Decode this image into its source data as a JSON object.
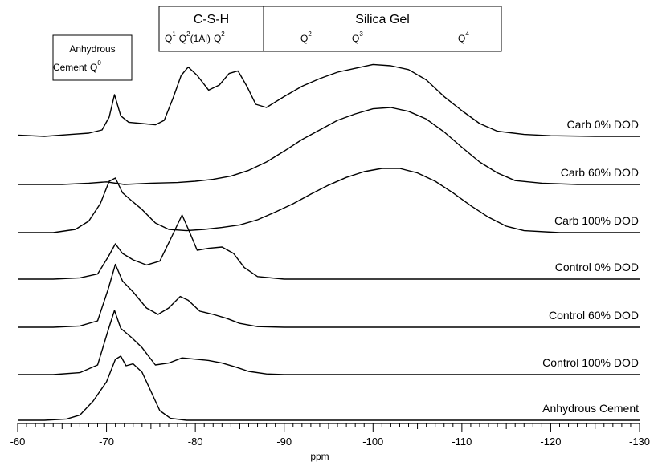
{
  "chart_data": {
    "type": "line",
    "xlabel": "ppm",
    "xlim": [
      -60,
      -130
    ],
    "x_ticks": [
      -60,
      -70,
      -80,
      -90,
      -100,
      -110,
      -120,
      -130
    ],
    "series": [
      {
        "name": "Carb 0% DOD",
        "points": [
          [
            -60,
            0.02
          ],
          [
            -63,
            0.0
          ],
          [
            -66,
            0.03
          ],
          [
            -68,
            0.05
          ],
          [
            -69.5,
            0.1
          ],
          [
            -70.3,
            0.3
          ],
          [
            -70.9,
            0.65
          ],
          [
            -71.6,
            0.32
          ],
          [
            -72.5,
            0.22
          ],
          [
            -74,
            0.2
          ],
          [
            -75.5,
            0.18
          ],
          [
            -76.5,
            0.25
          ],
          [
            -77.5,
            0.6
          ],
          [
            -78.4,
            0.95
          ],
          [
            -79.2,
            1.08
          ],
          [
            -80.2,
            0.95
          ],
          [
            -81.5,
            0.72
          ],
          [
            -82.7,
            0.8
          ],
          [
            -83.8,
            0.98
          ],
          [
            -84.8,
            1.02
          ],
          [
            -85.8,
            0.78
          ],
          [
            -86.8,
            0.5
          ],
          [
            -88,
            0.45
          ],
          [
            -90,
            0.62
          ],
          [
            -92,
            0.78
          ],
          [
            -94,
            0.9
          ],
          [
            -96,
            1.0
          ],
          [
            -98,
            1.06
          ],
          [
            -100,
            1.12
          ],
          [
            -102,
            1.1
          ],
          [
            -104,
            1.04
          ],
          [
            -106,
            0.88
          ],
          [
            -108,
            0.62
          ],
          [
            -110,
            0.4
          ],
          [
            -112,
            0.2
          ],
          [
            -114,
            0.08
          ],
          [
            -117,
            0.03
          ],
          [
            -120,
            0.01
          ],
          [
            -125,
            0.0
          ],
          [
            -130,
            0.0
          ]
        ]
      },
      {
        "name": "Carb 60% DOD",
        "points": [
          [
            -60,
            0.0
          ],
          [
            -65,
            0.0
          ],
          [
            -68,
            0.02
          ],
          [
            -70,
            0.04
          ],
          [
            -72,
            0.0
          ],
          [
            -75,
            0.02
          ],
          [
            -78,
            0.03
          ],
          [
            -80,
            0.05
          ],
          [
            -82,
            0.08
          ],
          [
            -84,
            0.13
          ],
          [
            -86,
            0.22
          ],
          [
            -88,
            0.35
          ],
          [
            -90,
            0.52
          ],
          [
            -92,
            0.7
          ],
          [
            -94,
            0.85
          ],
          [
            -96,
            1.0
          ],
          [
            -98,
            1.1
          ],
          [
            -100,
            1.18
          ],
          [
            -102,
            1.2
          ],
          [
            -104,
            1.14
          ],
          [
            -106,
            1.02
          ],
          [
            -108,
            0.82
          ],
          [
            -110,
            0.58
          ],
          [
            -112,
            0.35
          ],
          [
            -114,
            0.18
          ],
          [
            -116,
            0.06
          ],
          [
            -119,
            0.02
          ],
          [
            -123,
            0.0
          ],
          [
            -130,
            0.0
          ]
        ]
      },
      {
        "name": "Carb 100% DOD",
        "points": [
          [
            -60,
            0.0
          ],
          [
            -64,
            0.0
          ],
          [
            -66.5,
            0.05
          ],
          [
            -68,
            0.18
          ],
          [
            -69.3,
            0.45
          ],
          [
            -70.3,
            0.8
          ],
          [
            -71,
            0.85
          ],
          [
            -71.8,
            0.62
          ],
          [
            -72.8,
            0.5
          ],
          [
            -74,
            0.36
          ],
          [
            -75.5,
            0.15
          ],
          [
            -77,
            0.05
          ],
          [
            -79,
            0.03
          ],
          [
            -81,
            0.05
          ],
          [
            -83,
            0.08
          ],
          [
            -85,
            0.12
          ],
          [
            -87,
            0.2
          ],
          [
            -89,
            0.32
          ],
          [
            -91,
            0.45
          ],
          [
            -93,
            0.6
          ],
          [
            -95,
            0.74
          ],
          [
            -97,
            0.86
          ],
          [
            -99,
            0.95
          ],
          [
            -101,
            1.0
          ],
          [
            -103,
            1.0
          ],
          [
            -105,
            0.93
          ],
          [
            -107,
            0.8
          ],
          [
            -109,
            0.62
          ],
          [
            -111,
            0.42
          ],
          [
            -113,
            0.24
          ],
          [
            -115,
            0.1
          ],
          [
            -117,
            0.03
          ],
          [
            -121,
            0.0
          ],
          [
            -130,
            0.0
          ]
        ]
      },
      {
        "name": "Control 0% DOD",
        "points": [
          [
            -60,
            0.0
          ],
          [
            -64,
            0.0
          ],
          [
            -67,
            0.02
          ],
          [
            -69,
            0.08
          ],
          [
            -70.2,
            0.35
          ],
          [
            -71,
            0.55
          ],
          [
            -71.8,
            0.4
          ],
          [
            -73,
            0.3
          ],
          [
            -74.5,
            0.22
          ],
          [
            -76,
            0.28
          ],
          [
            -77.3,
            0.65
          ],
          [
            -78.5,
            1.0
          ],
          [
            -79.3,
            0.75
          ],
          [
            -80.2,
            0.45
          ],
          [
            -81.5,
            0.48
          ],
          [
            -83,
            0.5
          ],
          [
            -84.3,
            0.4
          ],
          [
            -85.5,
            0.18
          ],
          [
            -87,
            0.04
          ],
          [
            -90,
            0.0
          ],
          [
            -100,
            0.0
          ],
          [
            -110,
            0.0
          ],
          [
            -120,
            0.0
          ],
          [
            -130,
            0.0
          ]
        ]
      },
      {
        "name": "Control 60% DOD",
        "points": [
          [
            -60,
            0.0
          ],
          [
            -64,
            0.0
          ],
          [
            -67,
            0.02
          ],
          [
            -69,
            0.1
          ],
          [
            -70.2,
            0.6
          ],
          [
            -71,
            0.98
          ],
          [
            -71.8,
            0.72
          ],
          [
            -73,
            0.55
          ],
          [
            -74.5,
            0.3
          ],
          [
            -75.8,
            0.2
          ],
          [
            -77,
            0.3
          ],
          [
            -78.3,
            0.48
          ],
          [
            -79.2,
            0.42
          ],
          [
            -80.5,
            0.25
          ],
          [
            -82,
            0.2
          ],
          [
            -83.5,
            0.14
          ],
          [
            -85,
            0.06
          ],
          [
            -87,
            0.01
          ],
          [
            -90,
            0.0
          ],
          [
            -100,
            0.0
          ],
          [
            -110,
            0.0
          ],
          [
            -120,
            0.0
          ],
          [
            -130,
            0.0
          ]
        ]
      },
      {
        "name": "Control 100% DOD",
        "points": [
          [
            -60,
            0.0
          ],
          [
            -64,
            0.0
          ],
          [
            -67,
            0.03
          ],
          [
            -69,
            0.15
          ],
          [
            -70.2,
            0.7
          ],
          [
            -70.9,
            1.0
          ],
          [
            -71.6,
            0.72
          ],
          [
            -72.8,
            0.58
          ],
          [
            -74,
            0.42
          ],
          [
            -75.5,
            0.15
          ],
          [
            -77,
            0.18
          ],
          [
            -78.5,
            0.26
          ],
          [
            -80,
            0.24
          ],
          [
            -81.5,
            0.22
          ],
          [
            -83,
            0.18
          ],
          [
            -84.5,
            0.12
          ],
          [
            -86,
            0.05
          ],
          [
            -88,
            0.01
          ],
          [
            -90,
            0.0
          ],
          [
            -100,
            0.0
          ],
          [
            -110,
            0.0
          ],
          [
            -120,
            0.0
          ],
          [
            -130,
            0.0
          ]
        ]
      },
      {
        "name": "Anhydrous Cement",
        "points": [
          [
            -60,
            0.0
          ],
          [
            -63,
            0.0
          ],
          [
            -65.5,
            0.02
          ],
          [
            -67,
            0.08
          ],
          [
            -68.5,
            0.3
          ],
          [
            -70,
            0.6
          ],
          [
            -71,
            0.95
          ],
          [
            -71.6,
            1.0
          ],
          [
            -72.2,
            0.85
          ],
          [
            -73,
            0.88
          ],
          [
            -74,
            0.75
          ],
          [
            -75,
            0.45
          ],
          [
            -76,
            0.15
          ],
          [
            -77.2,
            0.03
          ],
          [
            -79,
            0.0
          ],
          [
            -85,
            0.0
          ],
          [
            -100,
            0.0
          ],
          [
            -130,
            0.0
          ]
        ]
      }
    ],
    "annotations": {
      "anhydrous_box": {
        "line1": "Anhydrous",
        "line2": "Cement",
        "q0": "Q",
        "q0_sup": "0"
      },
      "csh_box": {
        "title": "C-S-H",
        "q1": "Q",
        "q1_sup": "1",
        "q2al": "Q",
        "q2al_sup": "2",
        "q2al_suffix": "(1Al)",
        "q2": "Q",
        "q2_sup": "2"
      },
      "silica_box": {
        "title": "Silica Gel",
        "q2": "Q",
        "q2_sup": "2",
        "q3": "Q",
        "q3_sup": "3",
        "q4": "Q",
        "q4_sup": "4"
      }
    }
  }
}
